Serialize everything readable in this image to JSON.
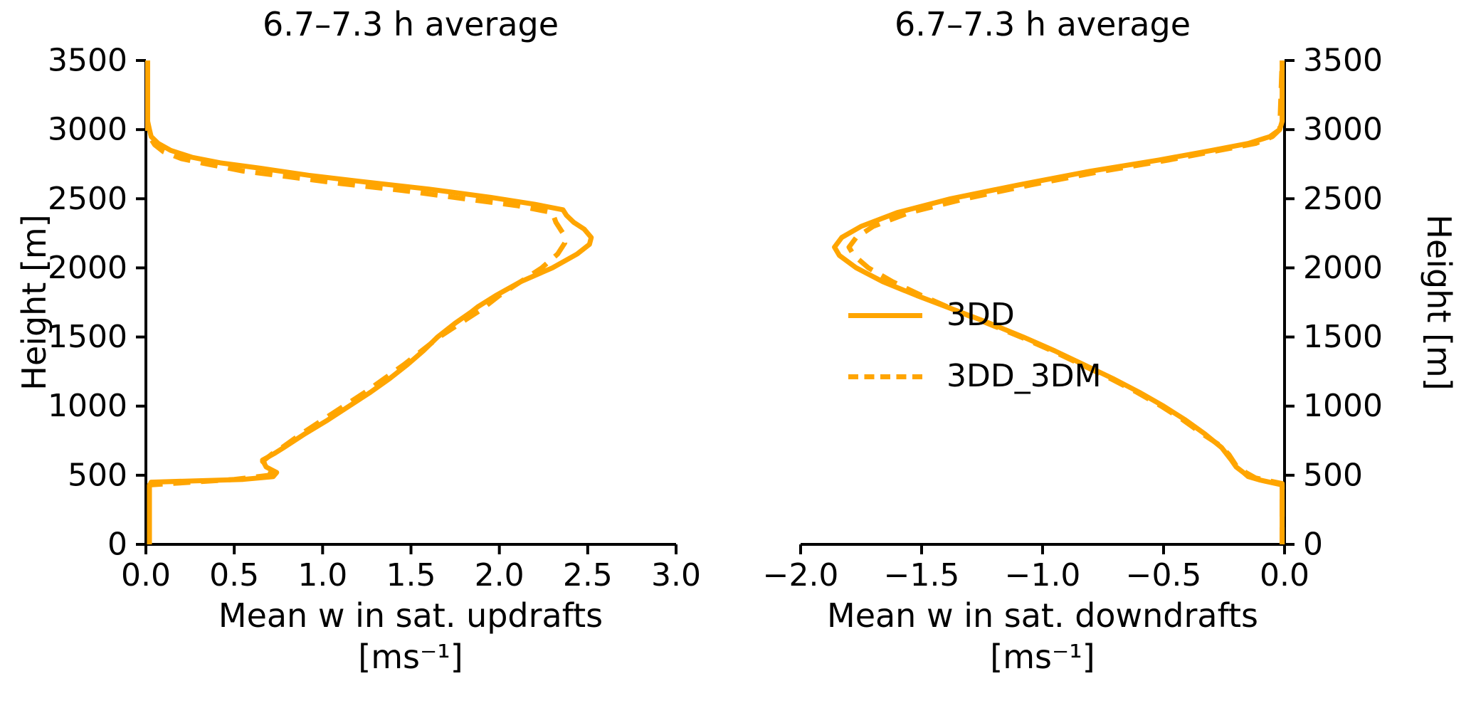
{
  "figure": {
    "background": "#ffffff",
    "accent_color": "#FFA500",
    "axis_color": "#000000"
  },
  "left_panel": {
    "title": "6.7–7.3 h average",
    "ylabel": "Height [m]",
    "xlabel_line1": "Mean w in sat. updrafts",
    "xlabel_line2": "[ms⁻¹]"
  },
  "right_panel": {
    "title": "6.7–7.3 h average",
    "ylabel": "Height [m]",
    "xlabel_line1": "Mean w in sat. downdrafts",
    "xlabel_line2": "[ms⁻¹]",
    "legend": {
      "position": "center-left of right panel",
      "items": [
        {
          "label": "3DD",
          "style": "solid",
          "color": "#FFA500"
        },
        {
          "label": "3DD_3DM",
          "style": "dashed",
          "color": "#FFA500"
        }
      ]
    }
  },
  "chart_data": [
    {
      "type": "line",
      "panel": "left",
      "title": "6.7–7.3 h average",
      "xlabel": "Mean w in sat. updrafts [ms⁻¹]",
      "ylabel": "Height [m]",
      "xlim": [
        0.0,
        3.0
      ],
      "ylim": [
        0,
        3500
      ],
      "grid": false,
      "yaxis_side": "left",
      "xtick_values": [
        0.0,
        0.5,
        1.0,
        1.5,
        2.0,
        2.5,
        3.0
      ],
      "xtick_labels": [
        "0.0",
        "0.5",
        "1.0",
        "1.5",
        "2.0",
        "2.5",
        "3.0"
      ],
      "ytick_values": [
        0,
        500,
        1000,
        1500,
        2000,
        2500,
        3000,
        3500
      ],
      "ytick_labels": [
        "0",
        "500",
        "1000",
        "1500",
        "2000",
        "2500",
        "3000",
        "3500"
      ],
      "series": [
        {
          "name": "3DD",
          "style": "solid",
          "color": "#FFA500",
          "points_format": "[w_ms-1, height_m]",
          "points": [
            [
              0.02,
              0
            ],
            [
              0.02,
              420
            ],
            [
              0.03,
              450
            ],
            [
              0.55,
              470
            ],
            [
              0.72,
              490
            ],
            [
              0.74,
              520
            ],
            [
              0.68,
              560
            ],
            [
              0.66,
              610
            ],
            [
              0.73,
              660
            ],
            [
              0.78,
              700
            ],
            [
              0.9,
              800
            ],
            [
              1.03,
              900
            ],
            [
              1.15,
              1000
            ],
            [
              1.27,
              1100
            ],
            [
              1.38,
              1200
            ],
            [
              1.48,
              1300
            ],
            [
              1.57,
              1400
            ],
            [
              1.65,
              1500
            ],
            [
              1.75,
              1600
            ],
            [
              1.84,
              1680
            ],
            [
              1.88,
              1720
            ],
            [
              1.98,
              1800
            ],
            [
              2.12,
              1900
            ],
            [
              2.3,
              2000
            ],
            [
              2.44,
              2100
            ],
            [
              2.51,
              2170
            ],
            [
              2.52,
              2220
            ],
            [
              2.48,
              2280
            ],
            [
              2.42,
              2330
            ],
            [
              2.38,
              2380
            ],
            [
              2.36,
              2420
            ],
            [
              2.2,
              2460
            ],
            [
              1.95,
              2510
            ],
            [
              1.6,
              2570
            ],
            [
              1.25,
              2620
            ],
            [
              0.92,
              2670
            ],
            [
              0.65,
              2720
            ],
            [
              0.42,
              2760
            ],
            [
              0.26,
              2800
            ],
            [
              0.14,
              2850
            ],
            [
              0.07,
              2900
            ],
            [
              0.03,
              2950
            ],
            [
              0.02,
              3000
            ],
            [
              0.01,
              3060
            ],
            [
              0.01,
              3500
            ]
          ]
        },
        {
          "name": "3DD_3DM",
          "style": "dashed",
          "color": "#FFA500",
          "points_format": "[w_ms-1, height_m]",
          "points": [
            [
              0.02,
              0
            ],
            [
              0.02,
              430
            ],
            [
              0.5,
              470
            ],
            [
              0.7,
              500
            ],
            [
              0.71,
              540
            ],
            [
              0.66,
              600
            ],
            [
              0.72,
              660
            ],
            [
              0.77,
              700
            ],
            [
              0.88,
              800
            ],
            [
              1.0,
              900
            ],
            [
              1.12,
              1000
            ],
            [
              1.24,
              1100
            ],
            [
              1.35,
              1200
            ],
            [
              1.46,
              1300
            ],
            [
              1.56,
              1400
            ],
            [
              1.66,
              1500
            ],
            [
              1.78,
              1600
            ],
            [
              1.9,
              1700
            ],
            [
              2.0,
              1800
            ],
            [
              2.12,
              1900
            ],
            [
              2.24,
              2000
            ],
            [
              2.33,
              2100
            ],
            [
              2.37,
              2180
            ],
            [
              2.36,
              2250
            ],
            [
              2.32,
              2330
            ],
            [
              2.3,
              2400
            ],
            [
              2.1,
              2450
            ],
            [
              1.8,
              2500
            ],
            [
              1.45,
              2560
            ],
            [
              1.1,
              2610
            ],
            [
              0.8,
              2660
            ],
            [
              0.55,
              2700
            ],
            [
              0.35,
              2750
            ],
            [
              0.2,
              2790
            ],
            [
              0.1,
              2840
            ],
            [
              0.05,
              2890
            ],
            [
              0.02,
              2950
            ],
            [
              0.01,
              3000
            ],
            [
              0.01,
              3500
            ]
          ]
        }
      ]
    },
    {
      "type": "line",
      "panel": "right",
      "title": "6.7–7.3 h average",
      "xlabel": "Mean w in sat. downdrafts [ms⁻¹]",
      "ylabel": "Height [m]",
      "xlim": [
        -2.0,
        0.0
      ],
      "ylim": [
        0,
        3500
      ],
      "grid": false,
      "yaxis_side": "right",
      "xtick_values": [
        -2.0,
        -1.5,
        -1.0,
        -0.5,
        0.0
      ],
      "xtick_labels": [
        "−2.0",
        "−1.5",
        "−1.0",
        "−0.5",
        "0.0"
      ],
      "ytick_values": [
        0,
        500,
        1000,
        1500,
        2000,
        2500,
        3000,
        3500
      ],
      "ytick_labels": [
        "0",
        "500",
        "1000",
        "1500",
        "2000",
        "2500",
        "3000",
        "3500"
      ],
      "series": [
        {
          "name": "3DD",
          "style": "solid",
          "color": "#FFA500",
          "points_format": "[w_ms-1, height_m]",
          "points": [
            [
              -0.01,
              0
            ],
            [
              -0.01,
              430
            ],
            [
              -0.1,
              465
            ],
            [
              -0.15,
              490
            ],
            [
              -0.17,
              520
            ],
            [
              -0.2,
              560
            ],
            [
              -0.22,
              610
            ],
            [
              -0.26,
              700
            ],
            [
              -0.33,
              800
            ],
            [
              -0.41,
              900
            ],
            [
              -0.5,
              1000
            ],
            [
              -0.6,
              1100
            ],
            [
              -0.71,
              1200
            ],
            [
              -0.83,
              1300
            ],
            [
              -0.95,
              1400
            ],
            [
              -1.08,
              1500
            ],
            [
              -1.22,
              1600
            ],
            [
              -1.37,
              1700
            ],
            [
              -1.52,
              1800
            ],
            [
              -1.66,
              1900
            ],
            [
              -1.77,
              2000
            ],
            [
              -1.84,
              2090
            ],
            [
              -1.86,
              2150
            ],
            [
              -1.83,
              2220
            ],
            [
              -1.75,
              2300
            ],
            [
              -1.6,
              2400
            ],
            [
              -1.38,
              2500
            ],
            [
              -1.1,
              2600
            ],
            [
              -0.8,
              2700
            ],
            [
              -0.52,
              2780
            ],
            [
              -0.3,
              2850
            ],
            [
              -0.15,
              2900
            ],
            [
              -0.06,
              2950
            ],
            [
              -0.02,
              3000
            ],
            [
              -0.01,
              3060
            ],
            [
              -0.01,
              3500
            ]
          ]
        },
        {
          "name": "3DD_3DM",
          "style": "dashed",
          "color": "#FFA500",
          "points_format": "[w_ms-1, height_m]",
          "points": [
            [
              -0.01,
              0
            ],
            [
              -0.01,
              440
            ],
            [
              -0.12,
              480
            ],
            [
              -0.16,
              520
            ],
            [
              -0.2,
              570
            ],
            [
              -0.23,
              650
            ],
            [
              -0.27,
              720
            ],
            [
              -0.34,
              800
            ],
            [
              -0.42,
              900
            ],
            [
              -0.51,
              1000
            ],
            [
              -0.61,
              1100
            ],
            [
              -0.72,
              1200
            ],
            [
              -0.84,
              1300
            ],
            [
              -0.96,
              1400
            ],
            [
              -1.09,
              1500
            ],
            [
              -1.23,
              1600
            ],
            [
              -1.37,
              1700
            ],
            [
              -1.5,
              1800
            ],
            [
              -1.62,
              1900
            ],
            [
              -1.72,
              2000
            ],
            [
              -1.78,
              2090
            ],
            [
              -1.8,
              2150
            ],
            [
              -1.77,
              2220
            ],
            [
              -1.7,
              2300
            ],
            [
              -1.55,
              2400
            ],
            [
              -1.32,
              2500
            ],
            [
              -1.05,
              2600
            ],
            [
              -0.75,
              2700
            ],
            [
              -0.48,
              2780
            ],
            [
              -0.27,
              2850
            ],
            [
              -0.12,
              2900
            ],
            [
              -0.05,
              2950
            ],
            [
              -0.02,
              3000
            ],
            [
              -0.01,
              3500
            ]
          ]
        }
      ]
    }
  ]
}
